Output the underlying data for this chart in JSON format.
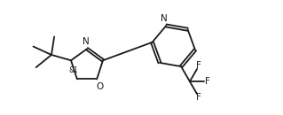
{
  "background_color": "#ffffff",
  "line_color": "#1a1a1a",
  "line_width": 1.3,
  "font_size_atom": 7.5,
  "font_size_stereo": 5.5,
  "fig_width": 3.19,
  "fig_height": 1.3,
  "dpi": 100,
  "xlim": [
    0,
    10
  ],
  "ylim": [
    0,
    4.08
  ]
}
